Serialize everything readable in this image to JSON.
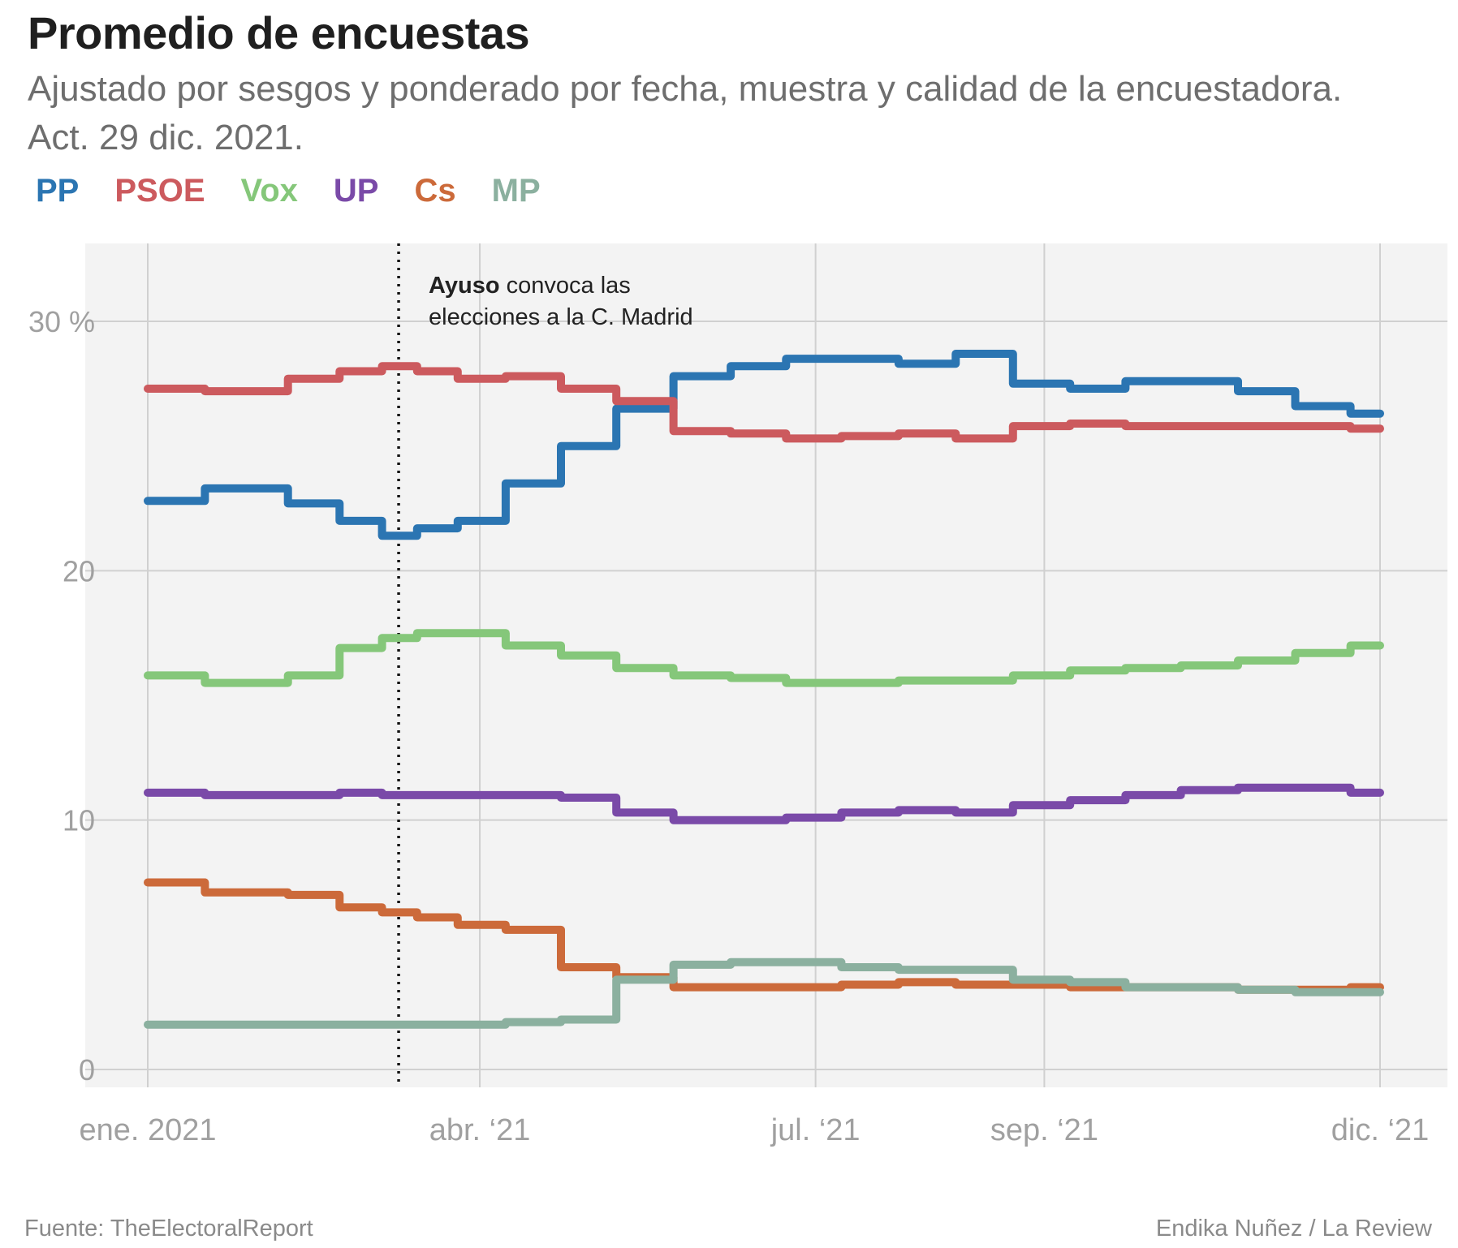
{
  "title": "Promedio de encuestas",
  "subtitle": "Ajustado por sesgos y ponderado por fecha, muestra y calidad de la encuestadora. Act. 29 dic. 2021.",
  "footer": {
    "source": "Fuente: TheElectoralReport",
    "credit": "Endika Nuñez / La Review"
  },
  "chart_data": {
    "type": "line",
    "title": "Promedio de encuestas",
    "ylabel": "",
    "xlabel": "",
    "ylim": [
      0,
      33
    ],
    "xlim": [
      "2021-01-01",
      "2021-12-01"
    ],
    "y_ticks": [
      {
        "value": 0,
        "label": "0"
      },
      {
        "value": 10,
        "label": "10"
      },
      {
        "value": 20,
        "label": "20"
      },
      {
        "value": 30,
        "label": "30 %"
      }
    ],
    "x_ticks": [
      {
        "date": "2021-01-01",
        "label": "ene. 2021"
      },
      {
        "date": "2021-04-01",
        "label": "abr. ‘21"
      },
      {
        "date": "2021-07-01",
        "label": "jul. ‘21"
      },
      {
        "date": "2021-09-01",
        "label": "sep. ‘21"
      },
      {
        "date": "2021-12-01",
        "label": "dic. ‘21"
      }
    ],
    "grid": true,
    "legend_position": "top-left",
    "annotation": {
      "date": "2021-03-10",
      "bold": "Ayuso",
      "text1": " convoca las",
      "text2": "elecciones a la C. Madrid"
    },
    "series": [
      {
        "name": "PP",
        "color": "#2b75b2",
        "x": [
          "2021-01-01",
          "2021-02-01",
          "2021-02-15",
          "2021-03-01",
          "2021-03-10",
          "2021-03-20",
          "2021-04-01",
          "2021-04-15",
          "2021-05-01",
          "2021-05-15",
          "2021-06-01",
          "2021-06-15",
          "2021-07-01",
          "2021-07-15",
          "2021-08-01",
          "2021-08-15",
          "2021-09-01",
          "2021-09-15",
          "2021-10-01",
          "2021-10-15",
          "2021-11-01",
          "2021-11-15",
          "2021-12-01"
        ],
        "values": [
          22.8,
          23.3,
          22.7,
          22.0,
          21.4,
          21.7,
          22.0,
          23.5,
          25.0,
          26.5,
          27.8,
          28.2,
          28.5,
          28.5,
          28.3,
          28.7,
          27.5,
          27.3,
          27.6,
          27.6,
          27.2,
          26.6,
          26.3
        ]
      },
      {
        "name": "PSOE",
        "color": "#cc5a5e",
        "x": [
          "2021-01-01",
          "2021-02-01",
          "2021-02-15",
          "2021-03-01",
          "2021-03-10",
          "2021-03-20",
          "2021-04-01",
          "2021-04-15",
          "2021-05-01",
          "2021-05-15",
          "2021-06-01",
          "2021-06-15",
          "2021-07-01",
          "2021-07-15",
          "2021-08-01",
          "2021-08-15",
          "2021-09-01",
          "2021-09-15",
          "2021-10-01",
          "2021-10-15",
          "2021-11-01",
          "2021-11-15",
          "2021-12-01"
        ],
        "values": [
          27.3,
          27.2,
          27.7,
          28.0,
          28.2,
          28.0,
          27.7,
          27.8,
          27.3,
          26.8,
          25.6,
          25.5,
          25.3,
          25.4,
          25.5,
          25.3,
          25.8,
          25.9,
          25.8,
          25.8,
          25.8,
          25.8,
          25.7
        ]
      },
      {
        "name": "Vox",
        "color": "#85c77a",
        "x": [
          "2021-01-01",
          "2021-02-01",
          "2021-02-15",
          "2021-03-01",
          "2021-03-10",
          "2021-03-20",
          "2021-04-01",
          "2021-04-15",
          "2021-05-01",
          "2021-05-15",
          "2021-06-01",
          "2021-06-15",
          "2021-07-01",
          "2021-07-15",
          "2021-08-01",
          "2021-08-15",
          "2021-09-01",
          "2021-09-15",
          "2021-10-01",
          "2021-10-15",
          "2021-11-01",
          "2021-11-15",
          "2021-12-01"
        ],
        "values": [
          15.8,
          15.5,
          15.8,
          16.9,
          17.3,
          17.5,
          17.5,
          17.0,
          16.6,
          16.1,
          15.8,
          15.7,
          15.5,
          15.5,
          15.6,
          15.6,
          15.8,
          16.0,
          16.1,
          16.2,
          16.4,
          16.7,
          17.0
        ]
      },
      {
        "name": "UP",
        "color": "#7a4aa8",
        "x": [
          "2021-01-01",
          "2021-02-01",
          "2021-02-15",
          "2021-03-01",
          "2021-03-10",
          "2021-03-20",
          "2021-04-01",
          "2021-04-15",
          "2021-05-01",
          "2021-05-15",
          "2021-06-01",
          "2021-06-15",
          "2021-07-01",
          "2021-07-15",
          "2021-08-01",
          "2021-08-15",
          "2021-09-01",
          "2021-09-15",
          "2021-10-01",
          "2021-10-15",
          "2021-11-01",
          "2021-11-15",
          "2021-12-01"
        ],
        "values": [
          11.1,
          11.0,
          11.0,
          11.1,
          11.0,
          11.0,
          11.0,
          11.0,
          10.9,
          10.3,
          10.0,
          10.0,
          10.1,
          10.3,
          10.4,
          10.3,
          10.6,
          10.8,
          11.0,
          11.2,
          11.3,
          11.3,
          11.1
        ]
      },
      {
        "name": "Cs",
        "color": "#cc6a3a",
        "x": [
          "2021-01-01",
          "2021-02-01",
          "2021-02-15",
          "2021-03-01",
          "2021-03-10",
          "2021-03-20",
          "2021-04-01",
          "2021-04-15",
          "2021-05-01",
          "2021-05-15",
          "2021-06-01",
          "2021-06-15",
          "2021-07-01",
          "2021-07-15",
          "2021-08-01",
          "2021-08-15",
          "2021-09-01",
          "2021-09-15",
          "2021-10-01",
          "2021-10-15",
          "2021-11-01",
          "2021-11-15",
          "2021-12-01"
        ],
        "values": [
          7.5,
          7.1,
          7.0,
          6.5,
          6.3,
          6.1,
          5.8,
          5.6,
          4.1,
          3.7,
          3.3,
          3.3,
          3.3,
          3.4,
          3.5,
          3.4,
          3.4,
          3.3,
          3.3,
          3.3,
          3.2,
          3.2,
          3.3
        ]
      },
      {
        "name": "MP",
        "color": "#8bb09f",
        "x": [
          "2021-01-01",
          "2021-02-01",
          "2021-02-15",
          "2021-03-01",
          "2021-03-10",
          "2021-03-20",
          "2021-04-01",
          "2021-04-15",
          "2021-05-01",
          "2021-05-15",
          "2021-06-01",
          "2021-06-15",
          "2021-07-01",
          "2021-07-15",
          "2021-08-01",
          "2021-08-15",
          "2021-09-01",
          "2021-09-15",
          "2021-10-01",
          "2021-10-15",
          "2021-11-01",
          "2021-11-15",
          "2021-12-01"
        ],
        "values": [
          1.8,
          1.8,
          1.8,
          1.8,
          1.8,
          1.8,
          1.8,
          1.9,
          2.0,
          3.6,
          4.2,
          4.3,
          4.3,
          4.1,
          4.0,
          4.0,
          3.6,
          3.5,
          3.3,
          3.3,
          3.2,
          3.1,
          3.1
        ]
      }
    ]
  }
}
